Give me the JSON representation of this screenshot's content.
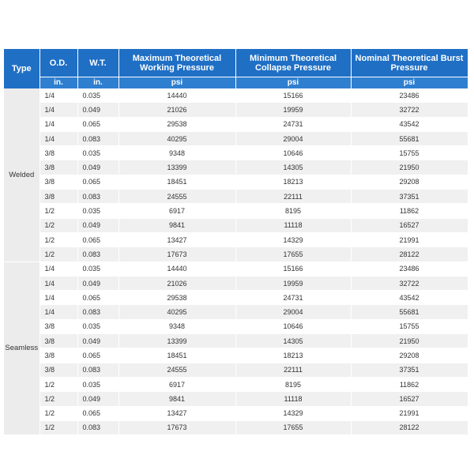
{
  "table": {
    "headers": [
      "Type",
      "O.D.",
      "W.T.",
      "Maximum Theoretical Working Pressure",
      "Minimum Theoretical Collapse Pressure",
      "Nominal Theoretical Burst Pressure"
    ],
    "units": [
      "in.",
      "in.",
      "psi",
      "psi",
      "psi"
    ],
    "groups": [
      {
        "type": "Welded",
        "rows": [
          [
            "1/4",
            0.035,
            14440,
            15166,
            23486
          ],
          [
            "1/4",
            0.049,
            21026,
            19959,
            32722
          ],
          [
            "1/4",
            0.065,
            29538,
            24731,
            43542
          ],
          [
            "1/4",
            0.083,
            40295,
            29004,
            55681
          ],
          [
            "3/8",
            0.035,
            9348,
            10646,
            15755
          ],
          [
            "3/8",
            0.049,
            13399,
            14305,
            21950
          ],
          [
            "3/8",
            0.065,
            18451,
            18213,
            29208
          ],
          [
            "3/8",
            0.083,
            24555,
            22111,
            37351
          ],
          [
            "1/2",
            0.035,
            6917,
            8195,
            11862
          ],
          [
            "1/2",
            0.049,
            9841,
            11118,
            16527
          ],
          [
            "1/2",
            0.065,
            13427,
            14329,
            21991
          ],
          [
            "1/2",
            0.083,
            17673,
            17655,
            28122
          ]
        ]
      },
      {
        "type": "Seamless",
        "rows": [
          [
            "1/4",
            0.035,
            14440,
            15166,
            23486
          ],
          [
            "1/4",
            0.049,
            21026,
            19959,
            32722
          ],
          [
            "1/4",
            0.065,
            29538,
            24731,
            43542
          ],
          [
            "1/4",
            0.083,
            40295,
            29004,
            55681
          ],
          [
            "3/8",
            0.035,
            9348,
            10646,
            15755
          ],
          [
            "3/8",
            0.049,
            13399,
            14305,
            21950
          ],
          [
            "3/8",
            0.065,
            18451,
            18213,
            29208
          ],
          [
            "3/8",
            0.083,
            24555,
            22111,
            37351
          ],
          [
            "1/2",
            0.035,
            6917,
            8195,
            11862
          ],
          [
            "1/2",
            0.049,
            9841,
            11118,
            16527
          ],
          [
            "1/2",
            0.065,
            13427,
            14329,
            21991
          ],
          [
            "1/2",
            0.083,
            17673,
            17655,
            28122
          ]
        ]
      }
    ]
  }
}
